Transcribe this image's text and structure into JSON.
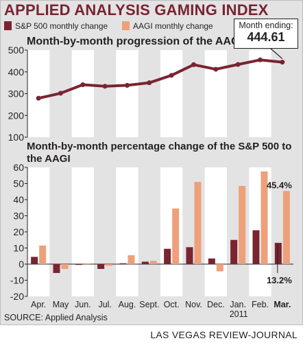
{
  "title": "APPLIED ANALYSIS GAMING INDEX",
  "legend": [
    {
      "label": "S&P 500 monthly change",
      "color": "#7a2331"
    },
    {
      "label": "AAGI monthly change",
      "color": "#eea07a"
    }
  ],
  "callout": {
    "label": "Month ending:",
    "value": "444.61"
  },
  "source": "SOURCE: Applied Analysis",
  "credit": "LAS VEGAS REVIEW-JOURNAL",
  "colors": {
    "sp500": "#7a2331",
    "aagi": "#eea07a",
    "bands": "#ffffff",
    "panel": "#e3e3e3"
  },
  "chart_data": [
    {
      "type": "line",
      "title": "Month-by-month progression of the AAGI",
      "categories": [
        "Apr.",
        "May",
        "Jun.",
        "Jul.",
        "Aug.",
        "Sept.",
        "Oct.",
        "Nov.",
        "Dec.",
        "Jan.",
        "Feb.",
        "Mar."
      ],
      "values": [
        279,
        302,
        341,
        334,
        338,
        350,
        384,
        433,
        412,
        434,
        455,
        444.61
      ],
      "ylim": [
        100,
        500
      ],
      "yticks": [
        "100",
        "200",
        "300",
        "400",
        "500"
      ]
    },
    {
      "type": "bar",
      "title": "Month-by-month percentage change of the S&P 500 to the AAGI",
      "categories": [
        "Apr.",
        "May",
        "Jun.",
        "Jul.",
        "Aug.",
        "Sept.",
        "Oct.",
        "Nov.",
        "Dec.",
        "Jan.",
        "Feb.",
        "Mar."
      ],
      "year_label": "2011",
      "series": [
        {
          "name": "S&P 500 monthly change",
          "values": [
            4.5,
            -5.5,
            -0.5,
            -3.0,
            0.5,
            1.5,
            9.5,
            10.5,
            3.5,
            15.0,
            21.0,
            13.2
          ]
        },
        {
          "name": "AAGI monthly change",
          "values": [
            11.5,
            -3.0,
            0.5,
            -1.0,
            5.5,
            2.0,
            34.5,
            51.0,
            -4.5,
            48.5,
            57.5,
            45.4
          ]
        }
      ],
      "annotations": {
        "aagi_last": "45.4%",
        "sp_last": "13.2%"
      },
      "ylim": [
        -20,
        60
      ],
      "yticks": [
        "-20",
        "-10",
        "0",
        "10",
        "20",
        "30",
        "40",
        "50",
        "60"
      ]
    }
  ]
}
